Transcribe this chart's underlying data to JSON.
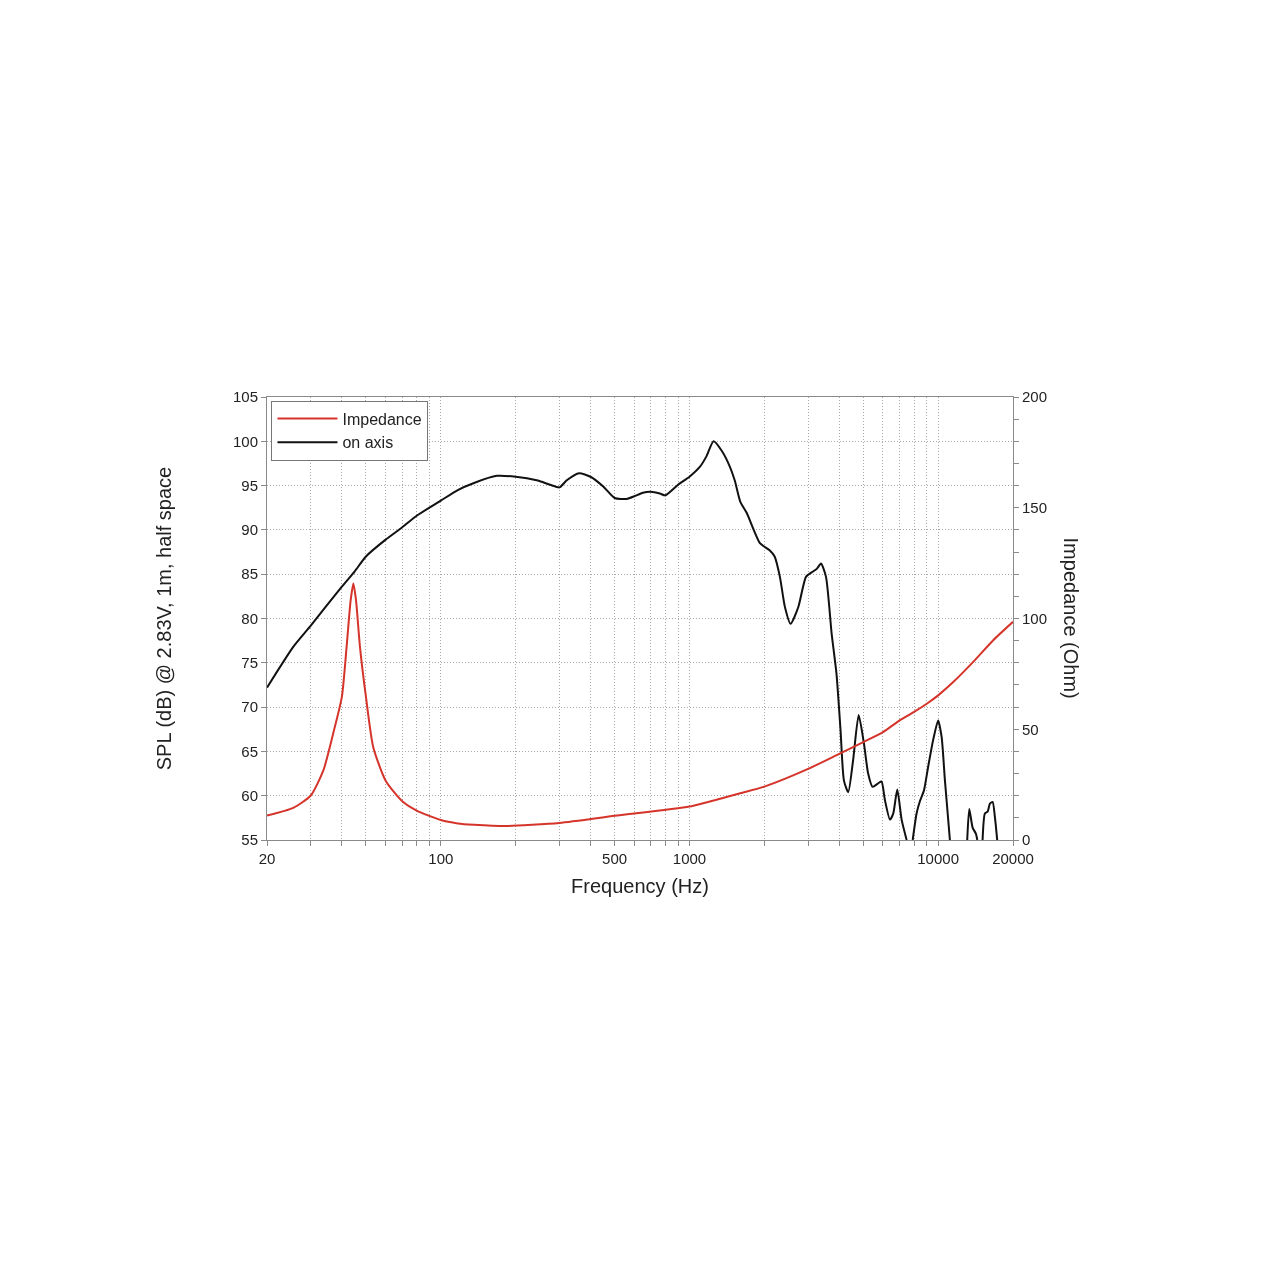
{
  "chart_data": {
    "type": "line",
    "xlabel": "Frequency (Hz)",
    "ylabel": "SPL (dB) @ 2.83V, 1m, half space",
    "y2label": "Impedance (Ohm)",
    "log": "x",
    "grid": true,
    "legend": "top left",
    "xlim": [
      20,
      20000
    ],
    "xticks": [
      20,
      {
        "value": 30,
        "label": null
      },
      {
        "value": 40,
        "label": null
      },
      {
        "value": 50,
        "label": null
      },
      {
        "value": 60,
        "label": null
      },
      {
        "value": 70,
        "label": null
      },
      {
        "value": 80,
        "label": null
      },
      {
        "value": 90,
        "label": null
      },
      100,
      {
        "value": 200,
        "label": null
      },
      {
        "value": 300,
        "label": null
      },
      {
        "value": 400,
        "label": null
      },
      500,
      {
        "value": 600,
        "label": null
      },
      {
        "value": 700,
        "label": null
      },
      {
        "value": 800,
        "label": null
      },
      {
        "value": 900,
        "label": null
      },
      1000,
      {
        "value": 2000,
        "label": null
      },
      {
        "value": 3000,
        "label": null
      },
      {
        "value": 4000,
        "label": null
      },
      {
        "value": 5000,
        "label": null
      },
      {
        "value": 6000,
        "label": null
      },
      {
        "value": 7000,
        "label": null
      },
      {
        "value": 8000,
        "label": null
      },
      {
        "value": 9000,
        "label": null
      },
      10000,
      20000
    ],
    "ylim": [
      55,
      105
    ],
    "yticks": [
      55,
      60,
      65,
      70,
      75,
      80,
      85,
      90,
      95,
      100,
      105
    ],
    "y2lim": [
      0,
      200
    ],
    "y2ticks": [
      0,
      {
        "value": 10,
        "label": null
      },
      {
        "value": 20,
        "label": null
      },
      {
        "value": 30,
        "label": null
      },
      {
        "value": 40,
        "label": null
      },
      50,
      {
        "value": 60,
        "label": null
      },
      {
        "value": 70,
        "label": null
      },
      {
        "value": 80,
        "label": null
      },
      {
        "value": 90,
        "label": null
      },
      100,
      {
        "value": 110,
        "label": null
      },
      {
        "value": 120,
        "label": null
      },
      {
        "value": 130,
        "label": null
      },
      {
        "value": 140,
        "label": null
      },
      150,
      {
        "value": 160,
        "label": null
      },
      {
        "value": 170,
        "label": null
      },
      {
        "value": 180,
        "label": null
      },
      {
        "value": 190,
        "label": null
      },
      200
    ],
    "series": [
      {
        "name": "Impedance",
        "color": "#d5342b",
        "axis": "y2",
        "x": [
          20,
          25.5,
          30,
          33.7,
          36.9,
          40,
          41.8,
          43.4,
          44.5,
          45.6,
          47.3,
          50,
          53.5,
          60,
          70,
          80,
          100,
          117,
          136,
          182,
          300,
          500,
          1000,
          1330,
          1600,
          2000,
          3000,
          4000,
          5000,
          6000,
          7000,
          8000,
          9000,
          10000,
          11500,
          13840,
          16650,
          20000
        ],
        "values": [
          11.0,
          14.5,
          20.1,
          31.4,
          48.0,
          64.6,
          87.2,
          108.3,
          115.8,
          108.3,
          87.2,
          64.6,
          41.9,
          26.8,
          17.5,
          13.3,
          9.0,
          7.5,
          6.9,
          6.3,
          7.7,
          10.9,
          15.1,
          18.6,
          21.1,
          24.1,
          32.1,
          38.9,
          44.2,
          48.7,
          54.0,
          57.8,
          61.5,
          65.3,
          71.3,
          80.4,
          90.2,
          98.5
        ]
      },
      {
        "name": "on axis",
        "color": "#111111",
        "x": [
          20,
          25.5,
          30,
          40,
          45,
          50,
          60,
          70,
          80,
          100,
          117,
          136,
          168,
          200,
          243,
          275,
          300,
          321,
          360,
          400,
          450,
          500,
          560,
          600,
          650,
          700,
          760,
          800,
          900,
          1000,
          1100,
          1170,
          1250,
          1350,
          1450,
          1520,
          1600,
          1700,
          1920,
          2100,
          2200,
          2310,
          2420,
          2550,
          2740,
          2940,
          3100,
          3250,
          3380,
          3540,
          3730,
          3900,
          4050,
          4180,
          4350,
          4550,
          4790,
          5030,
          5230,
          5450,
          5740,
          5920,
          6110,
          6400,
          6600,
          6850,
          7130,
          7470,
          7700,
          7900,
          8190,
          8450,
          8770,
          9120,
          9550,
          10000,
          10330,
          10650,
          11150,
          12000,
          13090,
          13340,
          13760,
          14190,
          14370,
          14700,
          15090,
          15420,
          15810,
          16150,
          16560,
          16910,
          17280
        ],
        "values": [
          72.2,
          76.8,
          79.2,
          83.6,
          85.3,
          87.0,
          88.9,
          90.3,
          91.6,
          93.3,
          94.5,
          95.3,
          96.1,
          96.0,
          95.6,
          95.1,
          94.8,
          95.6,
          96.4,
          96.0,
          94.9,
          93.6,
          93.5,
          93.8,
          94.2,
          94.3,
          94.1,
          93.9,
          95.1,
          96.0,
          97.1,
          98.3,
          100.0,
          98.9,
          97.2,
          95.6,
          93.2,
          91.9,
          88.5,
          87.7,
          87.0,
          84.7,
          81.3,
          79.4,
          81.3,
          84.7,
          85.2,
          85.6,
          86.2,
          84.7,
          78.3,
          73.8,
          67.4,
          61.7,
          60.4,
          64.0,
          69.1,
          65.9,
          62.5,
          61.0,
          61.4,
          61.6,
          59.5,
          57.3,
          58.0,
          60.7,
          57.3,
          55,
          null,
          55,
          58.0,
          59.4,
          60.6,
          63.3,
          66.3,
          68.5,
          66.6,
          61.7,
          55,
          null,
          55,
          58.5,
          56.4,
          55.7,
          55,
          null,
          55,
          58.0,
          58.2,
          59.1,
          59.3,
          57.6,
          55
        ]
      }
    ]
  }
}
